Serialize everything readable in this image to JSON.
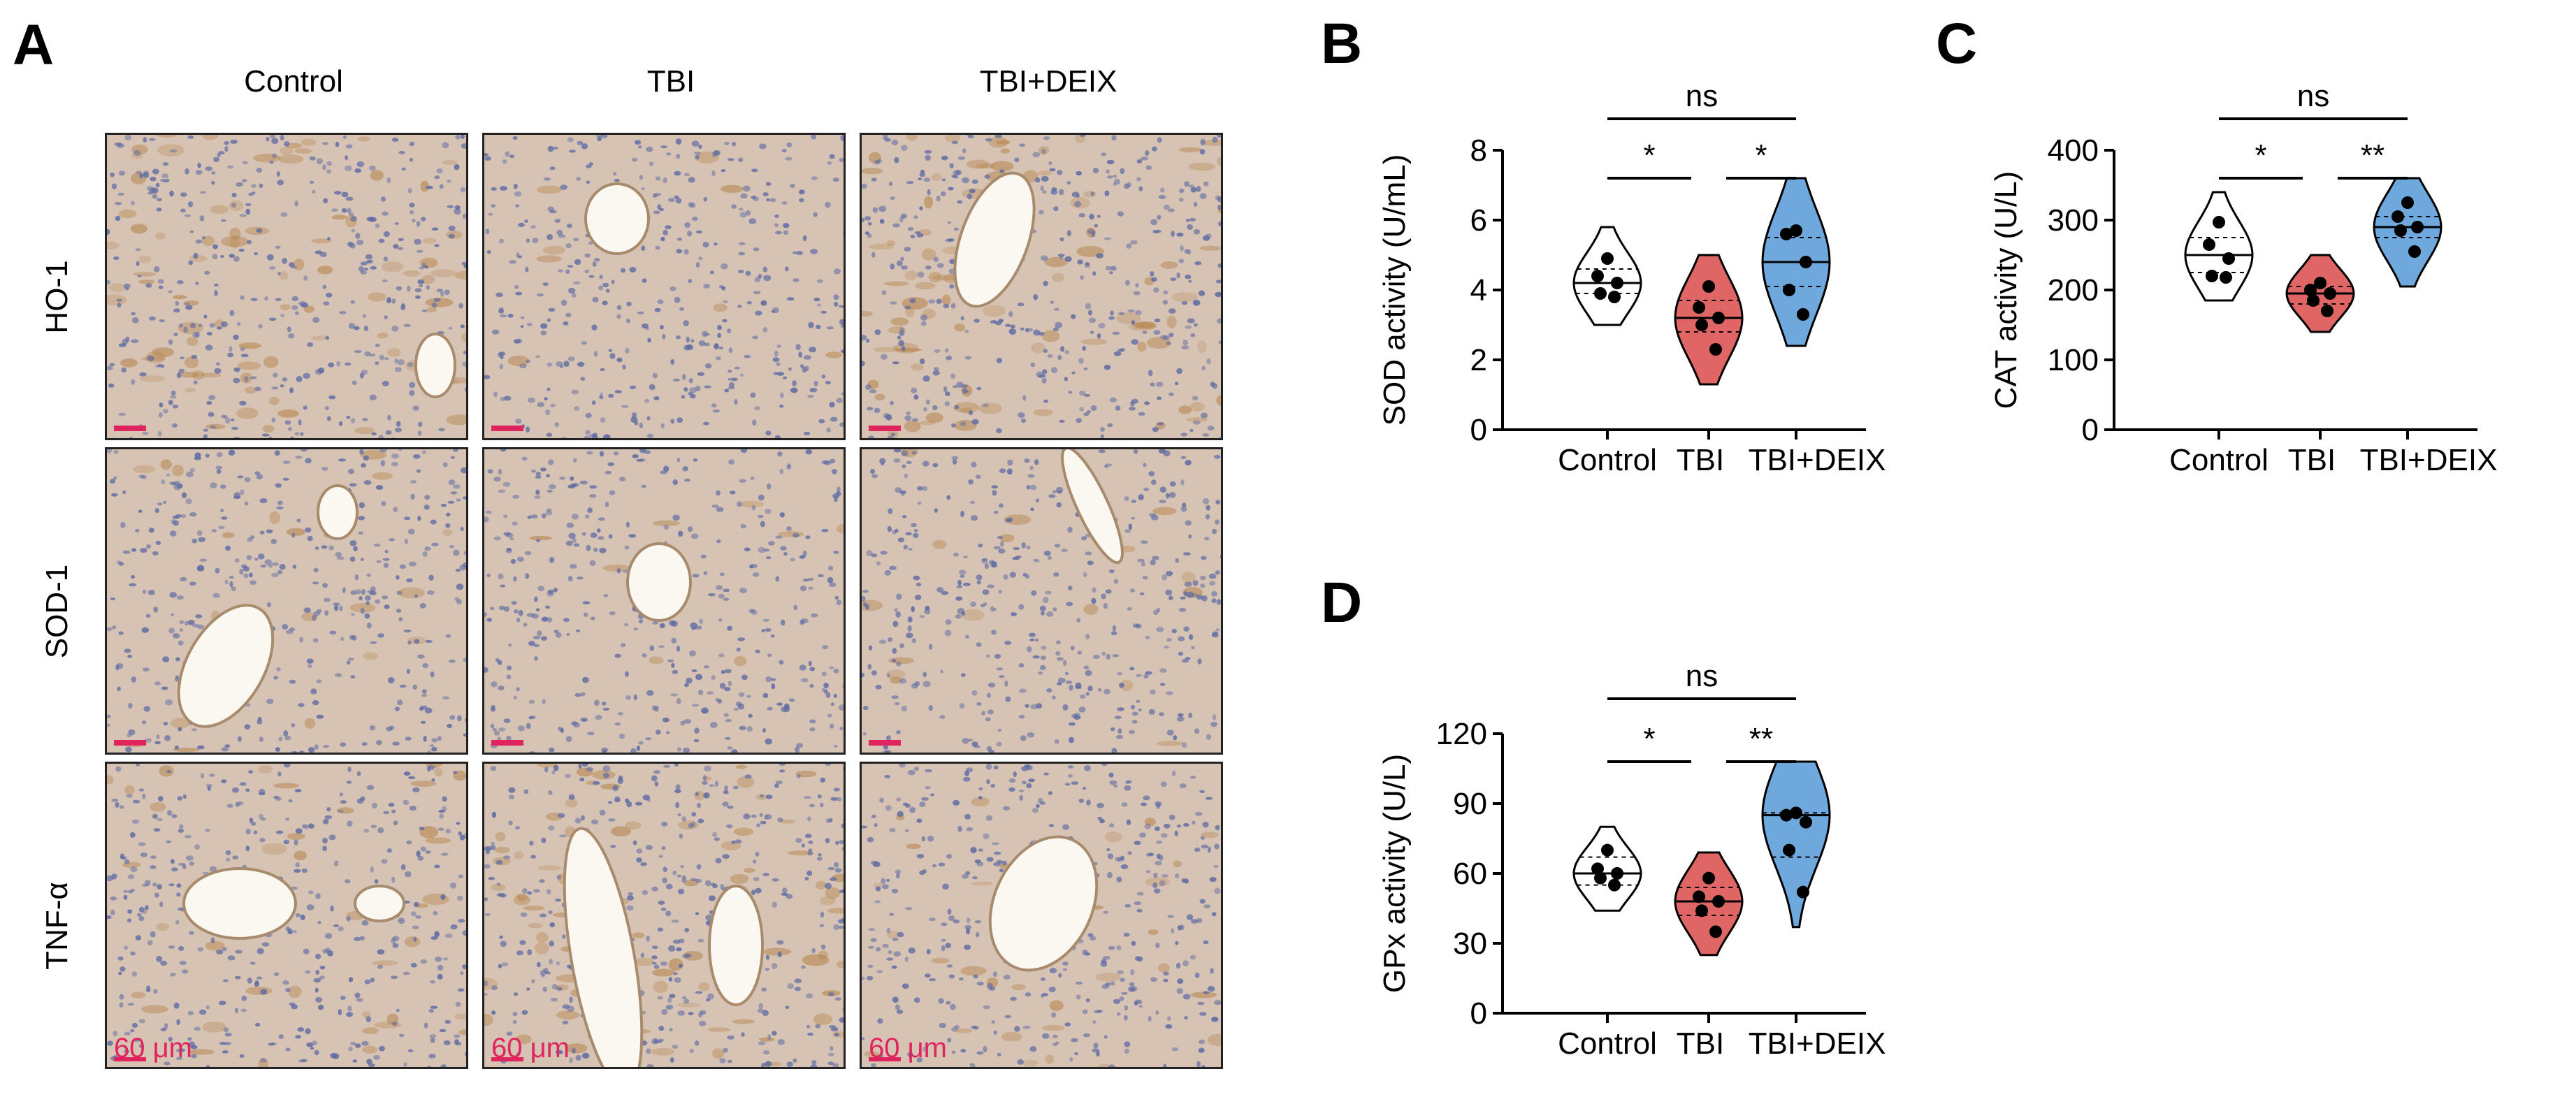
{
  "panelA": {
    "letter": "A",
    "columns": [
      "Control",
      "TBI",
      "TBI+DEIX"
    ],
    "rows": [
      "HO-1",
      "SOD-1",
      "TNF-α"
    ],
    "scale_label": "60 μm",
    "tile_bg": "#d6c3b4",
    "nuclei_color": "#5d6aa3",
    "stain_color": "#b5834a",
    "scale_color": "#e0245e"
  },
  "chart_data": [
    {
      "panel": "B",
      "type": "violin",
      "ylabel": "SOD activity (U/mL)",
      "categories": [
        "Control",
        "TBI",
        "TBI+DEIX"
      ],
      "ylim": [
        0,
        8
      ],
      "yticks": [
        0,
        2,
        4,
        6,
        8
      ],
      "colors": [
        "#ffffff",
        "#e06666",
        "#6fa8dc"
      ],
      "points": [
        [
          4.9,
          4.4,
          4.2,
          3.9,
          3.8
        ],
        [
          4.1,
          3.5,
          3.2,
          3.0,
          2.3
        ],
        [
          5.7,
          5.6,
          4.8,
          4.0,
          3.3
        ]
      ],
      "medians": [
        4.2,
        3.2,
        4.8
      ],
      "quartiles": [
        [
          3.9,
          4.6
        ],
        [
          2.8,
          3.7
        ],
        [
          4.1,
          5.5
        ]
      ],
      "violin_range": [
        [
          3.0,
          5.8
        ],
        [
          1.3,
          5.0
        ],
        [
          2.4,
          7.2
        ]
      ],
      "significance": [
        {
          "from": 0,
          "to": 1,
          "label": "*",
          "y": 7.2
        },
        {
          "from": 1,
          "to": 2,
          "label": "*",
          "y": 7.2
        },
        {
          "from": 0,
          "to": 2,
          "label": "ns",
          "y": 8.9
        }
      ]
    },
    {
      "panel": "C",
      "type": "violin",
      "ylabel": "CAT activity (U/L)",
      "categories": [
        "Control",
        "TBI",
        "TBI+DEIX"
      ],
      "ylim": [
        0,
        400
      ],
      "yticks": [
        0,
        100,
        200,
        300,
        400
      ],
      "colors": [
        "#ffffff",
        "#e06666",
        "#6fa8dc"
      ],
      "points": [
        [
          297,
          265,
          245,
          220,
          218
        ],
        [
          210,
          200,
          195,
          185,
          170
        ],
        [
          325,
          305,
          290,
          285,
          255
        ]
      ],
      "medians": [
        250,
        195,
        290
      ],
      "quartiles": [
        [
          225,
          275
        ],
        [
          180,
          205
        ],
        [
          275,
          305
        ]
      ],
      "violin_range": [
        [
          185,
          340
        ],
        [
          140,
          250
        ],
        [
          205,
          360
        ]
      ],
      "significance": [
        {
          "from": 0,
          "to": 1,
          "label": "*",
          "y": 360
        },
        {
          "from": 1,
          "to": 2,
          "label": "**",
          "y": 360
        },
        {
          "from": 0,
          "to": 2,
          "label": "ns",
          "y": 445
        }
      ]
    },
    {
      "panel": "D",
      "type": "violin",
      "ylabel": "GPx activity (U/L)",
      "categories": [
        "Control",
        "TBI",
        "TBI+DEIX"
      ],
      "ylim": [
        0,
        120
      ],
      "yticks": [
        0,
        30,
        60,
        90,
        120
      ],
      "colors": [
        "#ffffff",
        "#e06666",
        "#6fa8dc"
      ],
      "points": [
        [
          70,
          62,
          60,
          58,
          55
        ],
        [
          58,
          50,
          48,
          44,
          35
        ],
        [
          86,
          85,
          82,
          70,
          52
        ]
      ],
      "medians": [
        60,
        48,
        85
      ],
      "quartiles": [
        [
          55,
          67
        ],
        [
          42,
          54
        ],
        [
          67,
          86
        ]
      ],
      "violin_range": [
        [
          44,
          80
        ],
        [
          25,
          69
        ],
        [
          37,
          108
        ]
      ],
      "significance": [
        {
          "from": 0,
          "to": 1,
          "label": "*",
          "y": 108
        },
        {
          "from": 1,
          "to": 2,
          "label": "**",
          "y": 108
        },
        {
          "from": 0,
          "to": 2,
          "label": "ns",
          "y": 135
        }
      ]
    }
  ]
}
